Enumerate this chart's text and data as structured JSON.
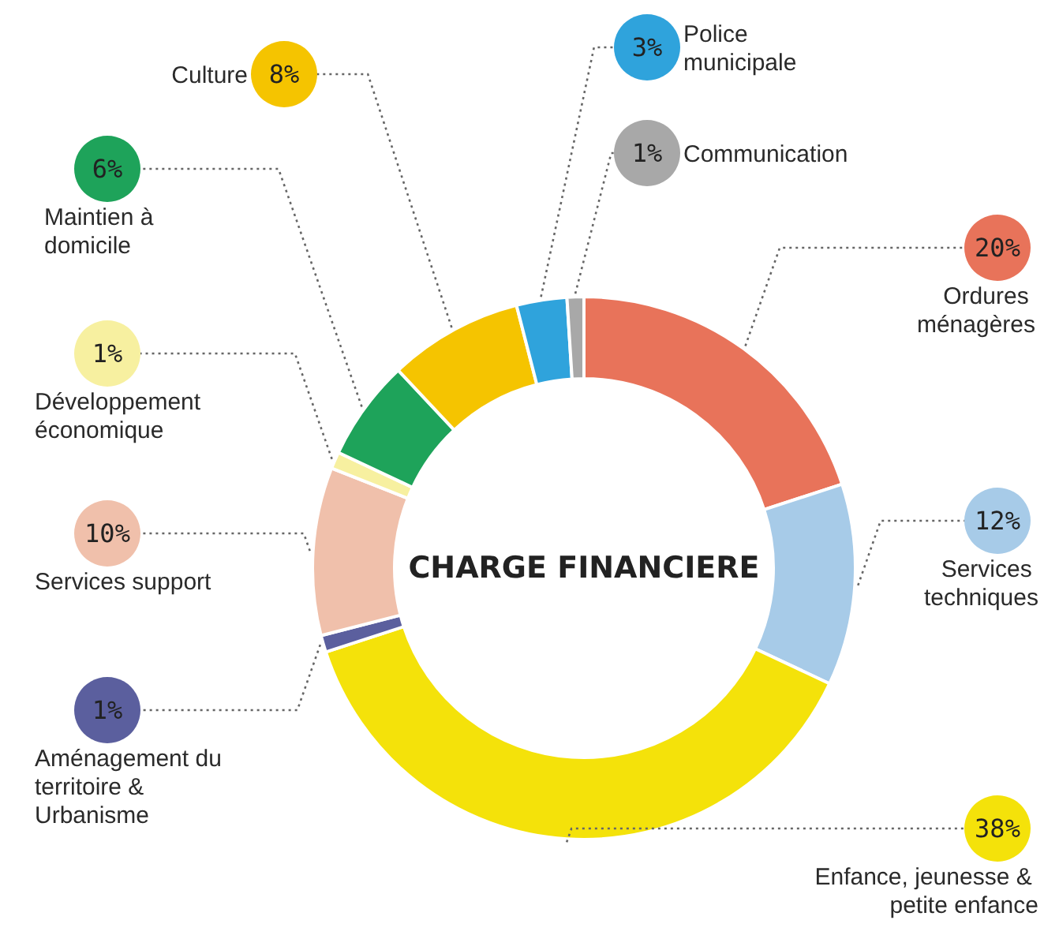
{
  "chart_data": {
    "type": "donut",
    "title": "CHARGE FINANCIERE",
    "categories": [
      "Ordures ménagères",
      "Services techniques",
      "Enfance, jeunesse & petite enfance",
      "Aménagement du territoire & Urbanisme",
      "Services support",
      "Développement économique",
      "Maintien à domicile",
      "Culture",
      "Police municipale",
      "Communication"
    ],
    "values": [
      20,
      12,
      38,
      1,
      10,
      1,
      6,
      8,
      3,
      1
    ],
    "value_labels": [
      "20%",
      "12%",
      "38%",
      "1%",
      "10%",
      "1%",
      "6%",
      "8%",
      "3%",
      "1%"
    ],
    "colors": [
      "#e8735a",
      "#a7cbe8",
      "#f4e20a",
      "#5b5f9e",
      "#f0c0ab",
      "#f7f0a0",
      "#1ea35a",
      "#f5c400",
      "#2fa3dc",
      "#a8a8a8"
    ],
    "legend": false
  }
}
